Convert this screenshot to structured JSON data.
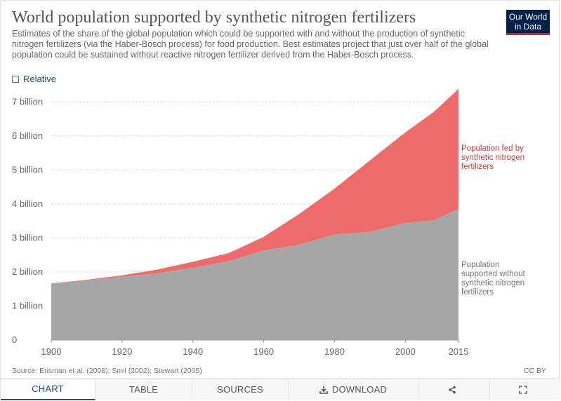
{
  "header": {
    "title": "World population supported by synthetic nitrogen fertilizers",
    "subtitle": "Estimates of the share of the global population which could be supported with and without the production of synthetic nitrogen fertilizers (via the Haber-Bosch process) for food production. Best estimates project that just over half of the global population could be sustained without reactive nitrogen fertilizer derived from the Haber-Bosch process.",
    "logo_line1": "Our World",
    "logo_line2": "in Data"
  },
  "controls": {
    "relative_label": "Relative"
  },
  "chart_data": {
    "type": "area",
    "stacked": true,
    "x": [
      1900,
      1910,
      1920,
      1930,
      1940,
      1950,
      1960,
      1970,
      1980,
      1990,
      2000,
      2008,
      2015
    ],
    "series": [
      {
        "name": "Population supported without synthetic nitrogen fertilizers",
        "label_lines": [
          "Population",
          "supported without",
          "synthetic nitrogen",
          "fertilizers"
        ],
        "color": "#a6a6a6",
        "values": [
          1.65,
          1.75,
          1.86,
          1.96,
          2.12,
          2.31,
          2.63,
          2.8,
          3.1,
          3.18,
          3.44,
          3.52,
          3.85
        ]
      },
      {
        "name": "Population fed by synthetic nitrogen fertilizers",
        "label_lines": [
          "Population fed by",
          "synthetic nitrogen",
          "fertilizers"
        ],
        "color": "#ee6b6b",
        "label_color": "#d73a3a",
        "values": [
          0.01,
          0.02,
          0.04,
          0.11,
          0.18,
          0.24,
          0.4,
          0.9,
          1.35,
          2.1,
          2.66,
          3.18,
          3.53
        ]
      }
    ],
    "title": "World population supported by synthetic nitrogen fertilizers",
    "xlabel": "",
    "ylabel": "",
    "ylim": [
      0,
      7.5
    ],
    "yticks": [
      0,
      1,
      2,
      3,
      4,
      5,
      6,
      7
    ],
    "ytick_labels": [
      "0",
      "1 billion",
      "2 billion",
      "3 billion",
      "4 billion",
      "5 billion",
      "6 billion",
      "7 billion"
    ],
    "xticks": [
      1900,
      1920,
      1940,
      1960,
      1980,
      2000,
      2015
    ],
    "xtick_labels": [
      "1900",
      "1920",
      "1940",
      "1960",
      "1980",
      "2000",
      "2015"
    ],
    "grid": true
  },
  "footer": {
    "source": "Source: Erisman et al. (2008); Smil (2002); Stewart (2005)",
    "license": "CC BY"
  },
  "tabs": {
    "chart": "CHART",
    "table": "TABLE",
    "sources": "SOURCES",
    "download": "DOWNLOAD"
  },
  "icons": [
    "download-icon",
    "share-icon",
    "expand-icon"
  ]
}
